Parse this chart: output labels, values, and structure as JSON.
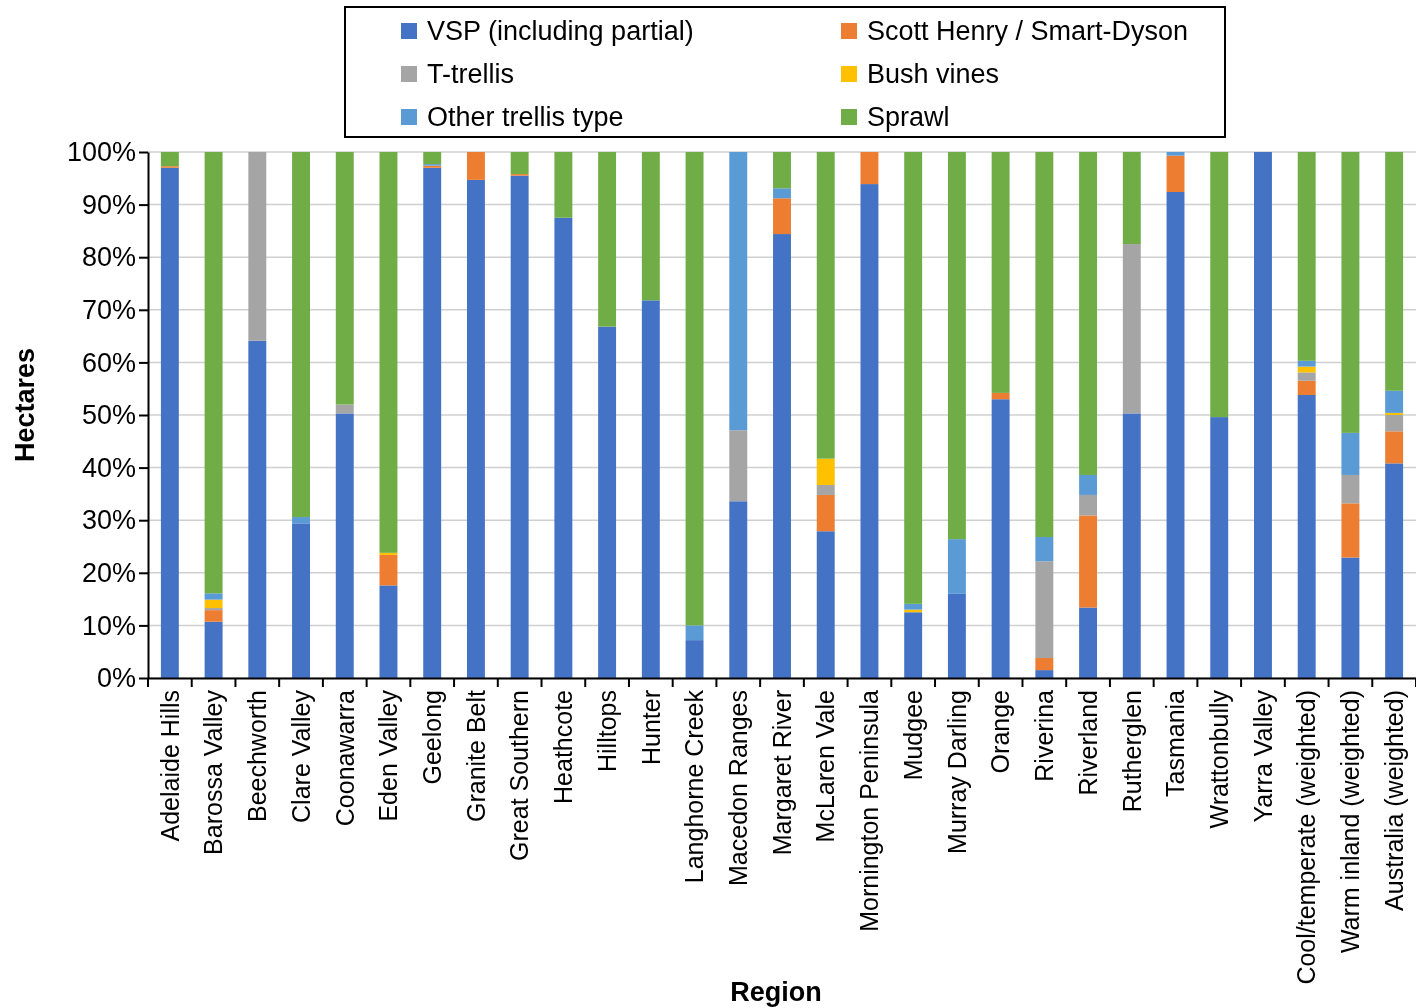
{
  "chart_data": {
    "type": "bar",
    "stacked": true,
    "xlabel": "Region",
    "ylabel": "Hectares",
    "categories": [
      "Adelaide Hills",
      "Barossa Valley",
      "Beechworth",
      "Clare Valley",
      "Coonawarra",
      "Eden Valley",
      "Geelong",
      "Granite Belt",
      "Great Southern",
      "Heathcote",
      "Hilltops",
      "Hunter",
      "Langhorne Creek",
      "Macedon Ranges",
      "Margaret River",
      "McLaren Vale",
      "Mornington Peninsula",
      "Mudgee",
      "Murray Darling",
      "Orange",
      "Riverina",
      "Riverland",
      "Rutherglen",
      "Tasmania",
      "Wrattonbully",
      "Yarra Valley",
      "Cool/temperate (weighted)",
      "Warm inland (weighted)",
      "Australia (weighted)"
    ],
    "series": [
      {
        "name": "VSP (including partial)",
        "color": "#4472c4",
        "values": [
          97.0,
          10.7,
          64.1,
          29.4,
          50.3,
          17.6,
          97.0,
          94.7,
          95.5,
          87.5,
          66.8,
          71.8,
          7.2,
          33.6,
          84.4,
          27.9,
          93.9,
          12.5,
          16.0,
          53.0,
          1.5,
          13.4,
          50.3,
          92.4,
          49.6,
          100,
          53.8,
          22.9,
          40.8
        ]
      },
      {
        "name": "Scott Henry / Smart-Dyson",
        "color": "#ed7d31",
        "values": [
          0.3,
          2.2,
          0,
          0,
          0,
          5.8,
          0.4,
          5.3,
          0.3,
          0,
          0,
          0,
          0,
          0,
          6.8,
          6.9,
          6.1,
          0,
          0,
          1.2,
          2.3,
          17.5,
          0,
          6.9,
          0,
          0,
          2.7,
          10.3,
          6.1
        ]
      },
      {
        "name": "T-trellis",
        "color": "#a5a5a5",
        "values": [
          0,
          0.4,
          35.9,
          0,
          1.7,
          0,
          0,
          0,
          0,
          0,
          0,
          0,
          0,
          13.5,
          0,
          1.9,
          0,
          0,
          0,
          0,
          18.4,
          3.9,
          32.2,
          0,
          0,
          0,
          1.6,
          5.4,
          3.1
        ]
      },
      {
        "name": "Bush vines",
        "color": "#ffc000",
        "values": [
          0,
          1.6,
          0,
          0,
          0,
          0.4,
          0,
          0,
          0,
          0,
          0,
          0,
          0,
          0,
          0,
          5.0,
          0,
          0.5,
          0,
          0,
          0,
          0,
          0,
          0,
          0,
          0,
          1.1,
          0,
          0.4
        ]
      },
      {
        "name": "Other trellis type",
        "color": "#5b9bd5",
        "values": [
          0,
          1.2,
          0,
          1.2,
          0,
          0,
          0.3,
          0,
          0,
          0,
          0,
          0,
          2.8,
          52.9,
          1.9,
          0,
          0,
          1.1,
          10.4,
          0,
          4.6,
          3.8,
          0,
          0.7,
          0,
          0,
          1.1,
          8.0,
          4.2
        ]
      },
      {
        "name": "Sprawl",
        "color": "#70ad47",
        "values": [
          2.7,
          83.9,
          0,
          69.4,
          48.0,
          76.2,
          2.3,
          0,
          4.2,
          12.5,
          33.2,
          28.2,
          90.0,
          0,
          6.9,
          58.3,
          0,
          85.9,
          73.6,
          45.8,
          73.2,
          61.4,
          17.5,
          0,
          50.4,
          0,
          39.7,
          53.4,
          45.4
        ]
      }
    ],
    "ylim": [
      0,
      100
    ],
    "yticks": [
      {
        "value": 0,
        "label": "0%"
      },
      {
        "value": 10,
        "label": "10%"
      },
      {
        "value": 20,
        "label": "20%"
      },
      {
        "value": 30,
        "label": "30%"
      },
      {
        "value": 40,
        "label": "40%"
      },
      {
        "value": 50,
        "label": "50%"
      },
      {
        "value": 60,
        "label": "60%"
      },
      {
        "value": 70,
        "label": "70%"
      },
      {
        "value": 80,
        "label": "80%"
      },
      {
        "value": 90,
        "label": "90%"
      },
      {
        "value": 100,
        "label": "100%"
      }
    ],
    "grid": "y",
    "legend": "top"
  }
}
